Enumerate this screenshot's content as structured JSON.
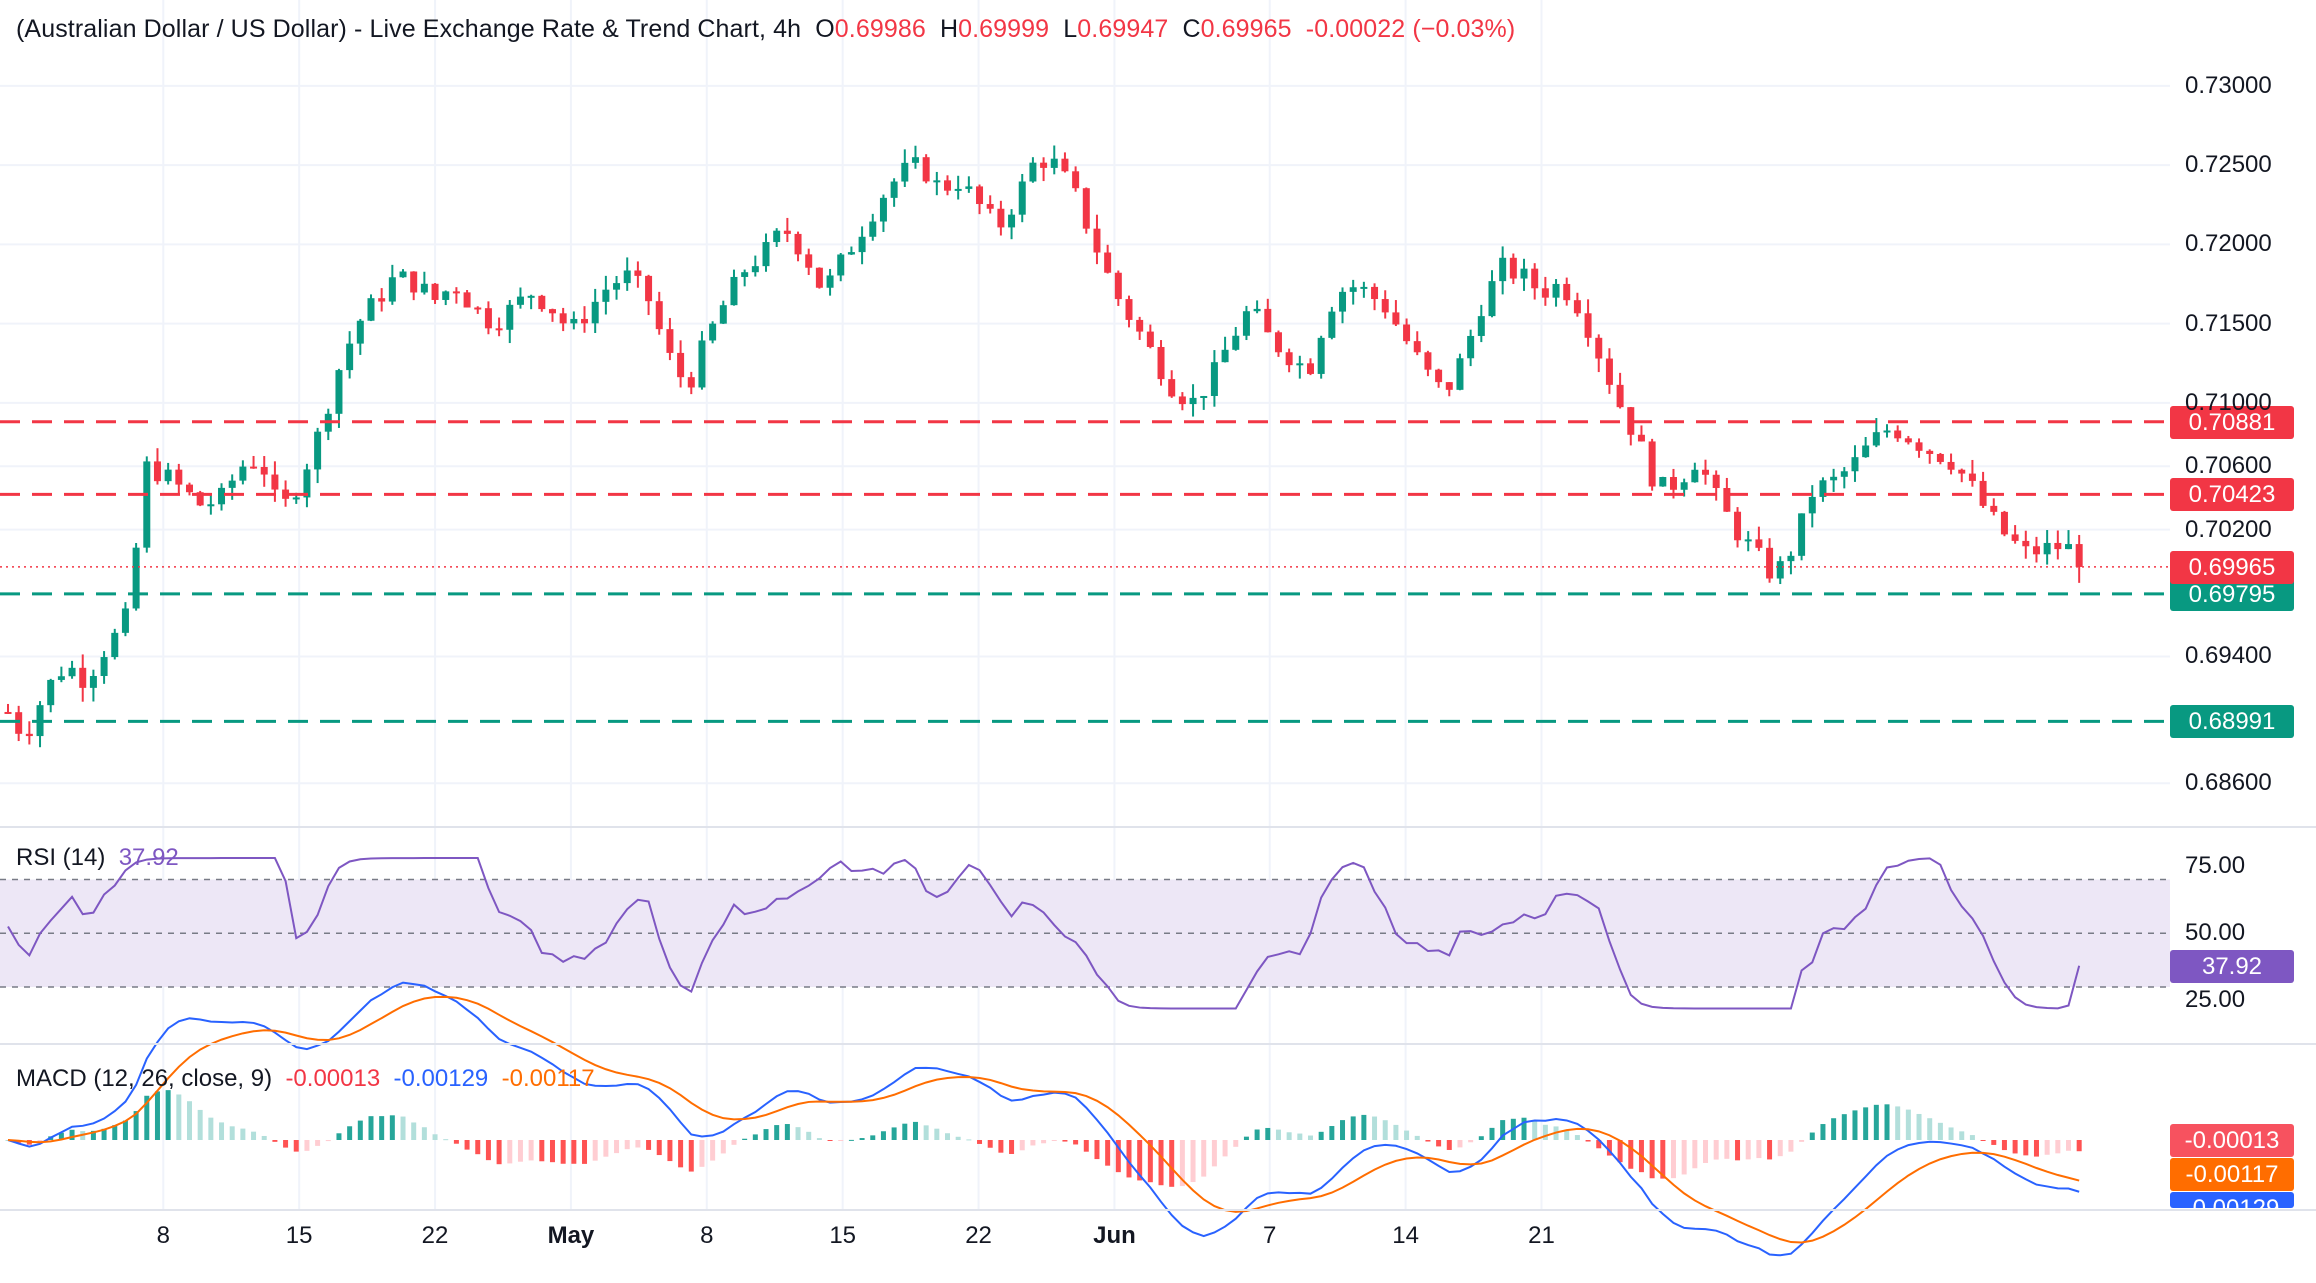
{
  "header": {
    "title": "(Australian Dollar / US Dollar) - Live Exchange Rate & Trend Chart, 4h",
    "open_label": "O",
    "open": "0.69986",
    "high_label": "H",
    "high": "0.69999",
    "low_label": "L",
    "low": "0.69947",
    "close_label": "C",
    "close": "0.69965",
    "change": "-0.00022 (−0.03%)"
  },
  "colors": {
    "up": "#089981",
    "down": "#f23645",
    "rsi": "#7e57c2",
    "rsi_band": "#ede7f6",
    "macd": "#2962ff",
    "signal": "#ff6d00",
    "resistance": "#f23645",
    "support": "#089981",
    "grid": "#f0f3fa",
    "text": "#131722"
  },
  "chart_data": [
    {
      "type": "candlestick",
      "title": "(Australian Dollar / US Dollar) - Live Exchange Rate & Trend Chart, 4h",
      "timeframe": "4h",
      "ylim": [
        0.684,
        0.731
      ],
      "y_ticks": [
        "0.73000",
        "0.72500",
        "0.72000",
        "0.71500",
        "0.71000",
        "0.70600",
        "0.70200",
        "0.69400",
        "0.68600"
      ],
      "x_ticks": [
        {
          "label": "8",
          "bold": false
        },
        {
          "label": "15",
          "bold": false
        },
        {
          "label": "22",
          "bold": false
        },
        {
          "label": "May",
          "bold": true
        },
        {
          "label": "8",
          "bold": false
        },
        {
          "label": "15",
          "bold": false
        },
        {
          "label": "22",
          "bold": false
        },
        {
          "label": "Jun",
          "bold": true
        },
        {
          "label": "7",
          "bold": false
        },
        {
          "label": "14",
          "bold": false
        },
        {
          "label": "21",
          "bold": false
        }
      ],
      "close_path": [
        [
          0,
          0.6905
        ],
        [
          0.5,
          0.6895
        ],
        [
          1,
          0.6893
        ],
        [
          2,
          0.692
        ],
        [
          3,
          0.6935
        ],
        [
          4,
          0.6925
        ],
        [
          5,
          0.6945
        ],
        [
          6,
          0.696
        ],
        [
          6.5,
          0.6995
        ],
        [
          7,
          0.706
        ],
        [
          8,
          0.7055
        ],
        [
          9,
          0.7045
        ],
        [
          10,
          0.7035
        ],
        [
          11,
          0.704
        ],
        [
          12,
          0.706
        ],
        [
          13,
          0.7065
        ],
        [
          14,
          0.703
        ],
        [
          15,
          0.705
        ],
        [
          16,
          0.708
        ],
        [
          17,
          0.712
        ],
        [
          18,
          0.715
        ],
        [
          19,
          0.7165
        ],
        [
          20,
          0.718
        ],
        [
          21,
          0.7175
        ],
        [
          22,
          0.7165
        ],
        [
          23,
          0.7175
        ],
        [
          24,
          0.716
        ],
        [
          25,
          0.715
        ],
        [
          26,
          0.716
        ],
        [
          27,
          0.717
        ],
        [
          28,
          0.716
        ],
        [
          29,
          0.7145
        ],
        [
          30,
          0.716
        ],
        [
          31,
          0.7175
        ],
        [
          32,
          0.718
        ],
        [
          33,
          0.7165
        ],
        [
          34,
          0.713
        ],
        [
          35,
          0.711
        ],
        [
          36,
          0.714
        ],
        [
          37,
          0.7165
        ],
        [
          38,
          0.7185
        ],
        [
          39,
          0.7195
        ],
        [
          40,
          0.721
        ],
        [
          41,
          0.7195
        ],
        [
          42,
          0.717
        ],
        [
          43,
          0.719
        ],
        [
          44,
          0.721
        ],
        [
          45,
          0.723
        ],
        [
          46,
          0.7245
        ],
        [
          47,
          0.725
        ],
        [
          48,
          0.7235
        ],
        [
          49,
          0.724
        ],
        [
          50,
          0.7225
        ],
        [
          51,
          0.721
        ],
        [
          52,
          0.723
        ],
        [
          53,
          0.7255
        ],
        [
          54,
          0.725
        ],
        [
          55,
          0.723
        ],
        [
          56,
          0.72
        ],
        [
          57,
          0.717
        ],
        [
          58,
          0.715
        ],
        [
          59,
          0.713
        ],
        [
          60,
          0.711
        ],
        [
          61,
          0.71
        ],
        [
          62,
          0.7115
        ],
        [
          63,
          0.714
        ],
        [
          64,
          0.716
        ],
        [
          65,
          0.714
        ],
        [
          66,
          0.713
        ],
        [
          67,
          0.712
        ],
        [
          68,
          0.716
        ],
        [
          69,
          0.7175
        ],
        [
          70,
          0.717
        ],
        [
          71,
          0.716
        ],
        [
          72,
          0.714
        ],
        [
          73,
          0.712
        ],
        [
          74,
          0.7105
        ],
        [
          75,
          0.713
        ],
        [
          76,
          0.7165
        ],
        [
          77,
          0.7185
        ],
        [
          78,
          0.718
        ],
        [
          79,
          0.717
        ],
        [
          80,
          0.7175
        ],
        [
          81,
          0.716
        ],
        [
          82,
          0.713
        ],
        [
          83,
          0.71
        ],
        [
          84,
          0.7075
        ],
        [
          85,
          0.7045
        ],
        [
          86,
          0.705
        ],
        [
          87,
          0.7065
        ],
        [
          88,
          0.704
        ],
        [
          89,
          0.702
        ],
        [
          90,
          0.7005
        ],
        [
          91,
          0.699
        ],
        [
          92,
          0.701
        ],
        [
          93,
          0.7045
        ],
        [
          94,
          0.705
        ],
        [
          95,
          0.706
        ],
        [
          96,
          0.7075
        ],
        [
          97,
          0.7085
        ],
        [
          98,
          0.7078
        ],
        [
          99,
          0.707
        ],
        [
          100,
          0.7065
        ],
        [
          101,
          0.705
        ],
        [
          102,
          0.703
        ],
        [
          103,
          0.7015
        ],
        [
          104,
          0.7005
        ],
        [
          105,
          0.7008
        ],
        [
          106,
          0.701
        ],
        [
          107,
          0.6997
        ]
      ],
      "days_span": [
        0,
        107
      ],
      "levels": [
        {
          "value": 0.70881,
          "label": "0.70881",
          "kind": "resistance"
        },
        {
          "value": 0.70423,
          "label": "0.70423",
          "kind": "resistance"
        },
        {
          "value": 0.69795,
          "label": "0.69795",
          "kind": "support"
        },
        {
          "value": 0.68991,
          "label": "0.68991",
          "kind": "support"
        }
      ],
      "last_price": {
        "value": 0.69965,
        "label": "0.69965"
      }
    },
    {
      "type": "line",
      "title": "RSI (14)",
      "name": "RSI (14)",
      "value_label": "37.92",
      "ylim": [
        14,
        81
      ],
      "y_ticks": [
        "75.00",
        "50.00",
        "25.00"
      ],
      "band": [
        30,
        70
      ],
      "midline": 50,
      "last_value": 37.92
    },
    {
      "type": "line",
      "title": "MACD (12, 26, close, 9)",
      "series": [
        {
          "name": "histogram",
          "label": "-0.00013"
        },
        {
          "name": "MACD",
          "label": "-0.00129"
        },
        {
          "name": "signal",
          "label": "-0.00117"
        }
      ],
      "last_values": {
        "histogram": "-0.00013",
        "macd": "-0.00129",
        "signal": "-0.00117"
      }
    }
  ],
  "rsi_panel": {
    "label": "RSI (14)",
    "value": "37.92",
    "ticks": [
      "75.00",
      "50.00",
      "25.00"
    ]
  },
  "macd_panel": {
    "label": "MACD (12, 26, close, 9)",
    "hist_value": "-0.00013",
    "macd_value": "-0.00129",
    "signal_value": "-0.00117"
  }
}
